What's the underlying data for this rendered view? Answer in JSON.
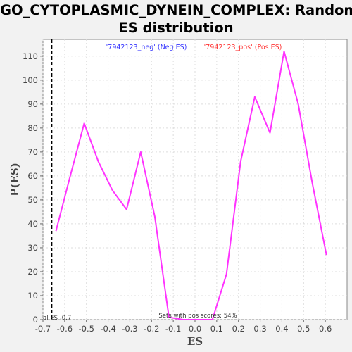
{
  "chart_data": {
    "type": "line",
    "title_line1": "GO_CYTOPLASMIC_DYNEIN_COMPLEX: Random",
    "title_line2": "ES distribution",
    "xlabel": "ES",
    "ylabel": "P(ES)",
    "xlim": [
      -0.7,
      0.7
    ],
    "ylim": [
      0,
      117
    ],
    "x_ticks": [
      -0.7,
      -0.6,
      -0.5,
      -0.4,
      -0.3,
      -0.2,
      -0.1,
      0.0,
      0.1,
      0.2,
      0.3,
      0.4,
      0.5,
      0.6
    ],
    "x_tick_labels": [
      "-0.7",
      "-0.6",
      "-0.5",
      "-0.4",
      "-0.3",
      "-0.2",
      "-0.1",
      "0.0",
      "0.1",
      "0.2",
      "0.3",
      "0.4",
      "0.5",
      "0.6"
    ],
    "y_ticks": [
      0,
      10,
      20,
      30,
      40,
      50,
      60,
      70,
      80,
      90,
      100,
      110
    ],
    "y_tick_labels": [
      "0",
      "10",
      "20",
      "30",
      "40",
      "50",
      "60",
      "70",
      "80",
      "90",
      "100",
      "110"
    ],
    "grid": true,
    "legend_placement": "top",
    "series": [
      {
        "name": "'7942123_neg' (Neg ES)",
        "color": "#3333ff",
        "x": [],
        "y": []
      },
      {
        "name": "'7942123_pos' (Pos ES)",
        "color": "#ff3333",
        "x": [],
        "y": []
      },
      {
        "name": "",
        "color": "#ff33ff",
        "x": [
          -0.64,
          -0.58,
          -0.51,
          -0.445,
          -0.38,
          -0.315,
          -0.25,
          -0.185,
          -0.12,
          -0.055,
          0.01,
          0.08,
          0.145,
          0.21,
          0.275,
          0.345,
          0.41,
          0.475,
          0.54,
          0.605
        ],
        "y": [
          37,
          58,
          82,
          66,
          54,
          46,
          70,
          43,
          1,
          0,
          0,
          0,
          19,
          66,
          93,
          78,
          112,
          90,
          57,
          27
        ]
      }
    ],
    "marker": {
      "x": -0.66,
      "style": "dashed",
      "color": "#000000"
    },
    "annotations": {
      "left_label": "al ES -0.7",
      "bottom_label": "Sets with pos scores: 54%"
    }
  }
}
